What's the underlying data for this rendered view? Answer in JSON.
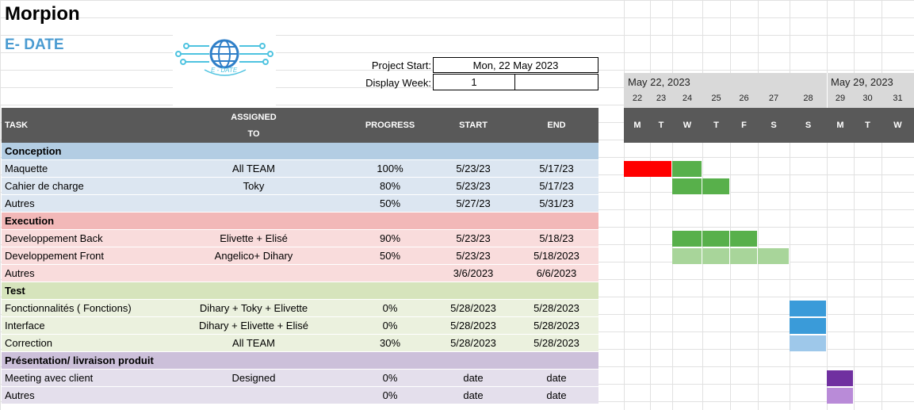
{
  "title": "Morpion",
  "subtitle": "E- DATE",
  "logo_text": "E - DATE",
  "project_start_label": "Project Start:",
  "project_start_value": "Mon, 22 May 2023",
  "display_week_label": "Display Week:",
  "display_week_value": "1",
  "weeks": [
    {
      "label": "May 22, 2023"
    },
    {
      "label": "May 29, 2023"
    }
  ],
  "day_numbers": [
    "22",
    "23",
    "24",
    "25",
    "26",
    "27",
    "28",
    "29",
    "30",
    "31"
  ],
  "day_letters": [
    "M",
    "T",
    "W",
    "T",
    "F",
    "S",
    "S",
    "M",
    "T",
    "W"
  ],
  "headers": {
    "task": "TASK",
    "assigned_line1": "ASSIGNED",
    "assigned_line2": "TO",
    "progress": "PROGRESS",
    "start": "START",
    "end": "END"
  },
  "colors": {
    "conception_header": "#b3cde3",
    "conception_row": "#dce6f1",
    "execution_header": "#f2b8b8",
    "execution_row": "#f9dcdc",
    "test_header": "#d6e4bc",
    "test_row": "#ebf1de",
    "presentation_header": "#ccc0da",
    "presentation_row": "#e4dfec",
    "bar_red": "#ff0000",
    "bar_green": "#58b04b",
    "bar_lightgreen": "#a8d59a",
    "bar_blue": "#3a9bd9",
    "bar_lightblue": "#9ec8ea",
    "bar_purple": "#7030a0",
    "bar_lightpurple": "#b98bd8"
  },
  "rows": [
    {
      "type": "section",
      "task": "Conception",
      "assigned": "",
      "progress": "",
      "start": "",
      "end": ""
    },
    {
      "type": "task",
      "task": "Maquette",
      "assigned": "All TEAM",
      "progress": "100%",
      "start": "5/23/23",
      "end": "5/17/23"
    },
    {
      "type": "task",
      "task": "Cahier de charge",
      "assigned": "Toky",
      "progress": "80%",
      "start": "5/23/23",
      "end": "5/17/23"
    },
    {
      "type": "task",
      "task": "Autres",
      "assigned": "",
      "progress": "50%",
      "start": "5/27/23",
      "end": "5/31/23"
    },
    {
      "type": "section",
      "task": "Execution",
      "assigned": "",
      "progress": "",
      "start": "",
      "end": ""
    },
    {
      "type": "task",
      "task": "Developpement Back",
      "assigned": "Elivette + Elisé",
      "progress": "90%",
      "start": "5/23/23",
      "end": "5/18/23"
    },
    {
      "type": "task",
      "task": "Developpement Front",
      "assigned": "Angelico+ Dihary",
      "progress": "50%",
      "start": "5/23/23",
      "end": "5/18/2023"
    },
    {
      "type": "task",
      "task": "Autres",
      "assigned": "",
      "progress": "",
      "start": "3/6/2023",
      "end": "6/6/2023"
    },
    {
      "type": "section",
      "task": "Test",
      "assigned": "",
      "progress": "",
      "start": "",
      "end": ""
    },
    {
      "type": "task",
      "task": "Fonctionnalités ( Fonctions)",
      "assigned": "Dihary + Toky + Elivette",
      "progress": "0%",
      "start": "5/28/2023",
      "end": "5/28/2023"
    },
    {
      "type": "task",
      "task": "Interface",
      "assigned": "Dihary + Elivette + Elisé",
      "progress": "0%",
      "start": "5/28/2023",
      "end": "5/28/2023"
    },
    {
      "type": "task",
      "task": "Correction",
      "assigned": "All TEAM",
      "progress": "30%",
      "start": "5/28/2023",
      "end": "5/28/2023"
    },
    {
      "type": "section",
      "task": "Présentation/ livraison produit",
      "assigned": "",
      "progress": "",
      "start": "",
      "end": ""
    },
    {
      "type": "task",
      "task": "Meeting avec client",
      "assigned": "Designed",
      "progress": "0%",
      "start": "date",
      "end": "date"
    },
    {
      "type": "task",
      "task": "Autres",
      "assigned": "",
      "progress": "0%",
      "start": "date",
      "end": "date"
    }
  ]
}
